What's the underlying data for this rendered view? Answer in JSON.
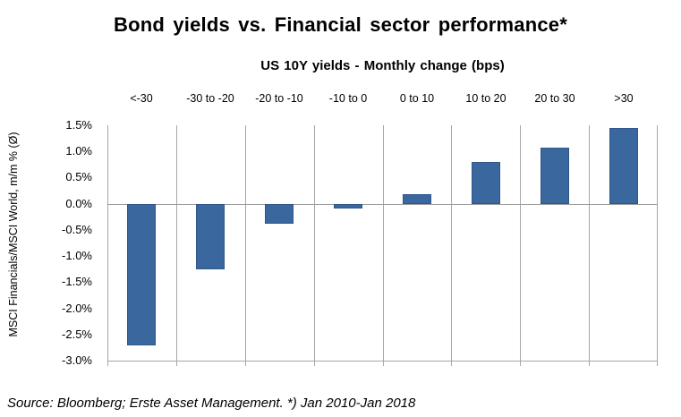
{
  "chart_data": {
    "type": "bar",
    "title": "Bond yields vs. Financial sector performance*",
    "xlabel": "US 10Y yields - Monthly change (bps)",
    "ylabel": "MSCI Financials/MSCI World, m/m % (Ø)",
    "categories": [
      "<-30",
      "-30 to -20",
      "-20 to -10",
      "-10 to 0",
      "0 to 10",
      "10 to 20",
      "20 to 30",
      ">30"
    ],
    "values": [
      -2.7,
      -1.25,
      -0.38,
      -0.08,
      0.18,
      0.8,
      1.07,
      1.45
    ],
    "ylim": [
      -3.0,
      1.5
    ],
    "ytick_step": 0.5,
    "ytick_labels": [
      "1.5%",
      "1.0%",
      "0.5%",
      "0.0%",
      "-0.5%",
      "-1.0%",
      "-1.5%",
      "-2.0%",
      "-2.5%",
      "-3.0%"
    ],
    "grid": "vertical-category-separators",
    "legend": "none",
    "bar_color": "#3a679e",
    "bar_border_color": "#31568a",
    "axis_color": "#a6a6a6"
  },
  "footer": {
    "source_note": "Source: Bloomberg; Erste Asset Management. *) Jan 2010-Jan 2018"
  }
}
